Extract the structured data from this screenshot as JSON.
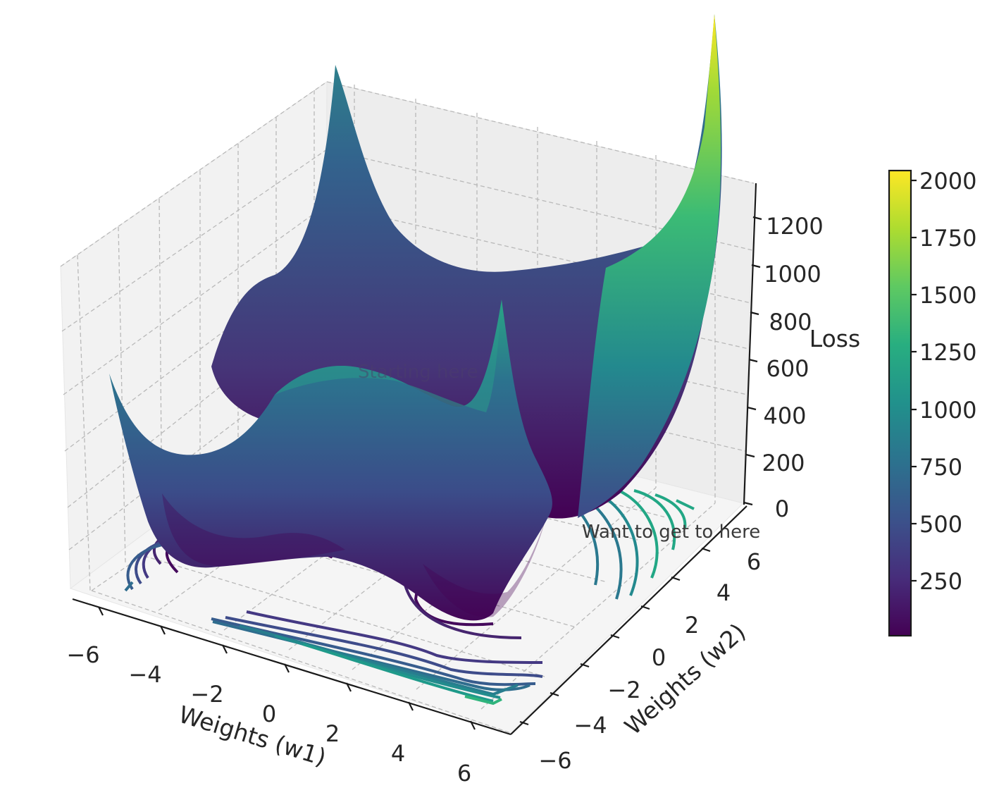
{
  "chart_data": {
    "type": "surface3d",
    "surface": {
      "function": "loss(w1, w2) — double-well surface with two valleys",
      "x_range": [
        -6,
        6
      ],
      "y_range": [
        -6,
        6
      ],
      "colormap": "viridis"
    },
    "contours": {
      "levels": [
        100,
        200,
        300,
        400,
        500,
        600,
        700,
        800,
        900,
        1000,
        1100,
        1200,
        1300,
        1400
      ]
    },
    "axes": {
      "x": {
        "label": "Weights (w1)",
        "ticks": [
          "−6",
          "−4",
          "−2",
          "0",
          "2",
          "4",
          "6"
        ],
        "range": [
          -6,
          6
        ]
      },
      "y": {
        "label": "Weights (w2)",
        "ticks": [
          "−6",
          "−4",
          "−2",
          "0",
          "2",
          "4",
          "6"
        ],
        "range": [
          -6,
          6
        ]
      },
      "z": {
        "label": "Loss",
        "ticks": [
          "0",
          "200",
          "400",
          "600",
          "800",
          "1000",
          "1200"
        ],
        "range": [
          0,
          1300
        ]
      }
    },
    "colorbar": {
      "ticks": [
        "250",
        "500",
        "750",
        "1000",
        "1250",
        "1500",
        "1750",
        "2000"
      ],
      "range": [
        10,
        2050
      ]
    },
    "annotations": [
      {
        "text": "Starting here"
      },
      {
        "text": "Want to get to here"
      }
    ]
  }
}
